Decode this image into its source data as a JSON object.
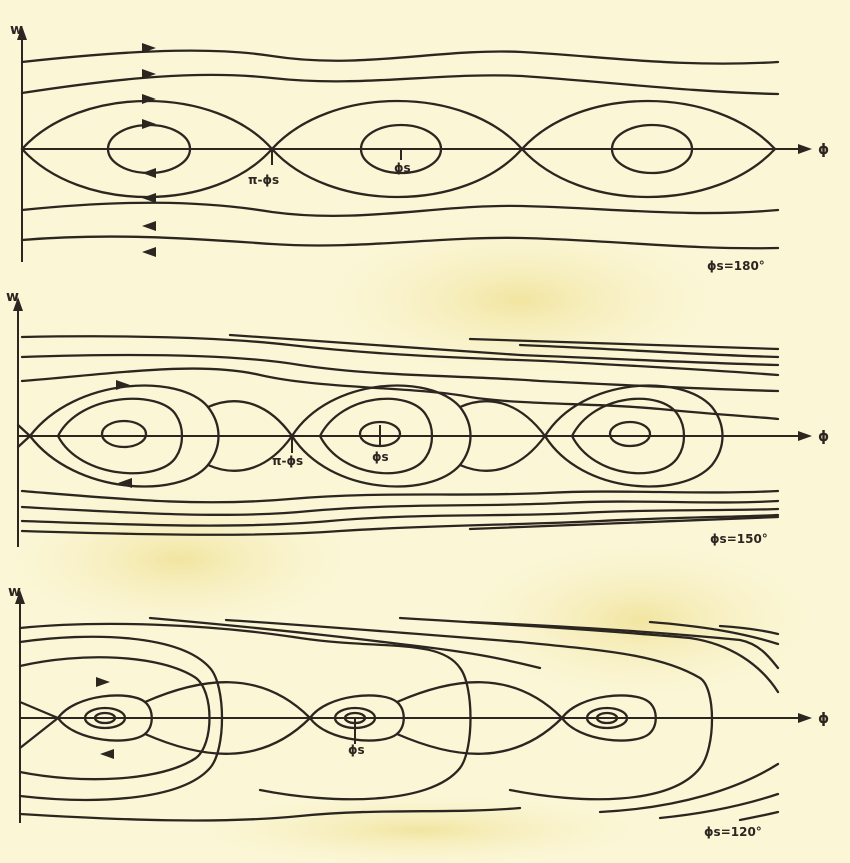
{
  "colors": {
    "paper": "#fbf6d6",
    "ink": "#2b2620",
    "stain": "#f2e9a8"
  },
  "panels": [
    {
      "id": "phase-180",
      "y_axis_label": "w",
      "x_axis_label": "ϕ",
      "phi_s_label": "ϕs=180°",
      "separatrix_point_label": "π-ϕs",
      "stable_point_label": "ϕs"
    },
    {
      "id": "phase-150",
      "y_axis_label": "w",
      "x_axis_label": "ϕ",
      "phi_s_label": "ϕs=150°",
      "separatrix_point_label": "π-ϕs",
      "stable_point_label": "ϕs"
    },
    {
      "id": "phase-120",
      "y_axis_label": "w",
      "x_axis_label": "ϕ",
      "phi_s_label": "ϕs=120°",
      "stable_point_label": "ϕs"
    }
  ]
}
